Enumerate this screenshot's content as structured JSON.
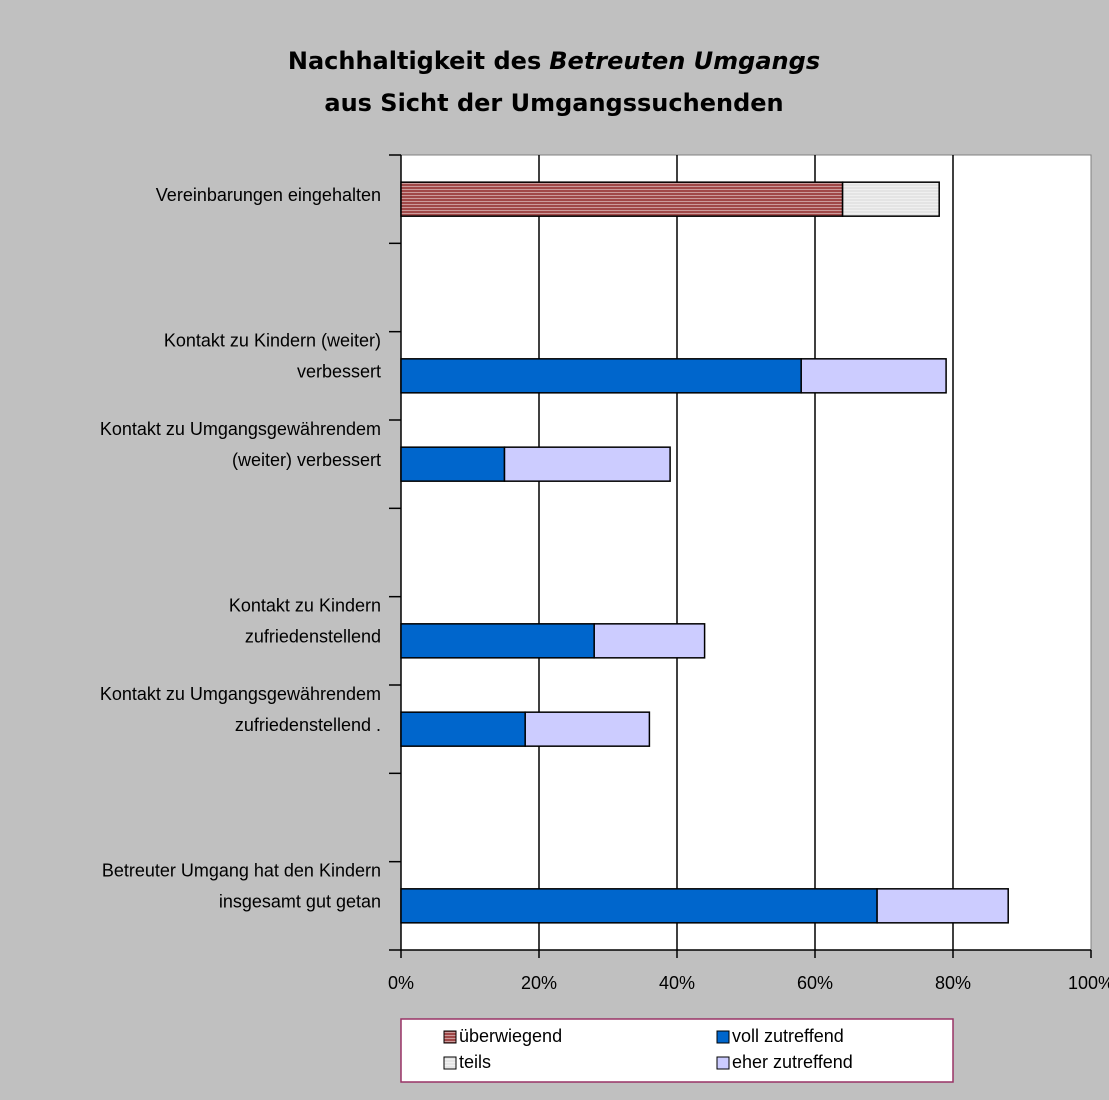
{
  "chart_data": {
    "type": "stacked-barh",
    "title_lines": [
      [
        "Nachhaltigkeit des",
        "Betreuten Umgangs"
      ],
      [
        "aus Sicht der Umgangssuchenden"
      ]
    ],
    "categories": [
      [
        "Vereinbarungen eingehalten"
      ],
      null,
      [
        "Kontakt zu Kindern (weiter)",
        "verbessert"
      ],
      [
        "Kontakt zu Umgangsgewährendem",
        "(weiter) verbessert"
      ],
      null,
      [
        "Kontakt zu Kindern",
        "zufriedenstellend"
      ],
      [
        "Kontakt zu Umgangsgewährendem",
        "zufriedenstellend ."
      ],
      null,
      [
        "Betreuter Umgang hat den Kindern",
        "insgesamt gut getan"
      ]
    ],
    "series": [
      {
        "name": "überwiegend",
        "color": "#a04848",
        "hatch": true,
        "values": [
          64,
          null,
          null,
          null,
          null,
          null,
          null,
          null,
          null
        ]
      },
      {
        "name": "voll zutreffend",
        "color": "#0066cc",
        "hatch": false,
        "values": [
          null,
          null,
          58,
          15,
          null,
          28,
          18,
          null,
          69
        ]
      },
      {
        "name": "teils",
        "color": "#e4e4e4",
        "hatch": true,
        "values": [
          14,
          null,
          null,
          null,
          null,
          null,
          null,
          null,
          null
        ]
      },
      {
        "name": "eher zutreffend",
        "color": "#ccccff",
        "hatch": false,
        "values": [
          null,
          null,
          21,
          24,
          null,
          16,
          18,
          null,
          19
        ]
      }
    ],
    "xlim": [
      0,
      100
    ],
    "xticks": [
      {
        "value": 0,
        "label": "0%"
      },
      {
        "value": 20,
        "label": "20%"
      },
      {
        "value": 40,
        "label": "40%"
      },
      {
        "value": 60,
        "label": "60%"
      },
      {
        "value": 80,
        "label": "80%"
      },
      {
        "value": 100,
        "label": "100%"
      }
    ],
    "grid": true,
    "legend": "bottom"
  }
}
